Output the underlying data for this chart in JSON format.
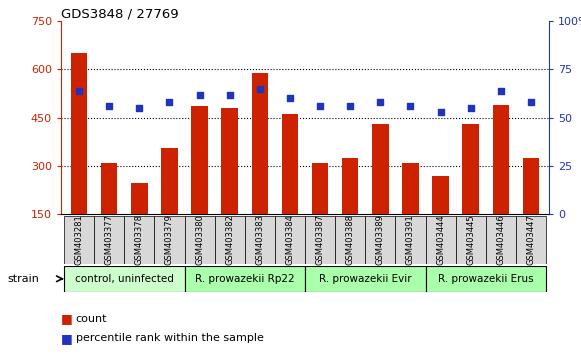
{
  "title": "GDS3848 / 27769",
  "samples": [
    "GSM403281",
    "GSM403377",
    "GSM403378",
    "GSM403379",
    "GSM403380",
    "GSM403382",
    "GSM403383",
    "GSM403384",
    "GSM403387",
    "GSM403388",
    "GSM403389",
    "GSM403391",
    "GSM403444",
    "GSM403445",
    "GSM403446",
    "GSM403447"
  ],
  "counts": [
    650,
    310,
    248,
    355,
    485,
    480,
    590,
    460,
    308,
    325,
    430,
    308,
    270,
    430,
    490,
    325
  ],
  "percentiles": [
    64,
    56,
    55,
    58,
    62,
    62,
    65,
    60,
    56,
    56,
    58,
    56,
    53,
    55,
    64,
    58
  ],
  "bar_color": "#cc2200",
  "dot_color": "#2233bb",
  "left_ylim": [
    150,
    750
  ],
  "left_yticks": [
    150,
    300,
    450,
    600,
    750
  ],
  "right_ylim": [
    0,
    100
  ],
  "right_yticks": [
    0,
    25,
    50,
    75,
    100
  ],
  "right_yticklabels": [
    "0",
    "25",
    "50",
    "75",
    "100%"
  ],
  "hlines": [
    300,
    450,
    600
  ],
  "legend_count": "count",
  "legend_pct": "percentile rank within the sample",
  "strain_label": "strain",
  "groups_info": [
    {
      "start": 0,
      "end": 4,
      "label": "control, uninfected",
      "color": "#ccffcc"
    },
    {
      "start": 4,
      "end": 8,
      "label": "R. prowazekii Rp22",
      "color": "#aaffaa"
    },
    {
      "start": 8,
      "end": 12,
      "label": "R. prowazekii Evir",
      "color": "#aaffaa"
    },
    {
      "start": 12,
      "end": 16,
      "label": "R. prowazekii Erus",
      "color": "#aaffaa"
    }
  ]
}
